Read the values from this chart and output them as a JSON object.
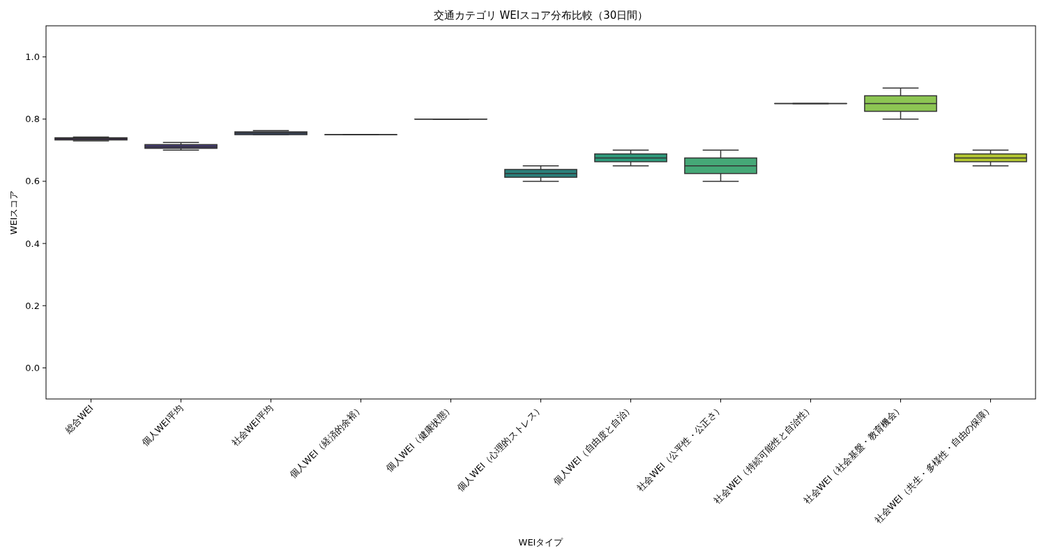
{
  "chart_data": {
    "type": "box",
    "title": "交通カテゴリ WEIスコア分布比較（30日間）",
    "xlabel": "WEIタイプ",
    "ylabel": "WEIスコア",
    "categories": [
      "総合WEI",
      "個人WEI平均",
      "社会WEI平均",
      "個人WEI（経済的余裕）",
      "個人WEI（健康状態）",
      "個人WEI（心理的ストレス）",
      "個人WEI（自由度と自治）",
      "社会WEI（公平性・公正さ）",
      "社会WEI（持続可能性と自治性）",
      "社会WEI（社会基盤・教育機会）",
      "社会WEI（共生・多様性・自由の保障）"
    ],
    "boxes": [
      {
        "low": 0.73,
        "q1": 0.733,
        "median": 0.737,
        "q3": 0.74,
        "high": 0.742
      },
      {
        "low": 0.7,
        "q1": 0.706,
        "median": 0.711,
        "q3": 0.718,
        "high": 0.725
      },
      {
        "low": 0.75,
        "q1": 0.75,
        "median": 0.755,
        "q3": 0.759,
        "high": 0.763
      },
      {
        "low": 0.75,
        "q1": 0.75,
        "median": 0.75,
        "q3": 0.75,
        "high": 0.75
      },
      {
        "low": 0.8,
        "q1": 0.8,
        "median": 0.8,
        "q3": 0.8,
        "high": 0.8
      },
      {
        "low": 0.6,
        "q1": 0.613,
        "median": 0.625,
        "q3": 0.638,
        "high": 0.65
      },
      {
        "low": 0.65,
        "q1": 0.663,
        "median": 0.675,
        "q3": 0.688,
        "high": 0.7
      },
      {
        "low": 0.6,
        "q1": 0.625,
        "median": 0.65,
        "q3": 0.675,
        "high": 0.7
      },
      {
        "low": 0.85,
        "q1": 0.85,
        "median": 0.85,
        "q3": 0.85,
        "high": 0.85
      },
      {
        "low": 0.8,
        "q1": 0.825,
        "median": 0.85,
        "q3": 0.875,
        "high": 0.9
      },
      {
        "low": 0.65,
        "q1": 0.663,
        "median": 0.675,
        "q3": 0.688,
        "high": 0.7
      }
    ],
    "colors": [
      "#3e1f5a",
      "#463c78",
      "#3b527e",
      "#33637f",
      "#2b727f",
      "#2a7f7a",
      "#2e9a7b",
      "#45a877",
      "#6bb667",
      "#8dc653",
      "#b3c632"
    ],
    "ylim": [
      -0.1,
      1.1
    ],
    "yticks": [
      {
        "value": 0,
        "label": "0.0"
      },
      {
        "value": 0.2,
        "label": "0.2"
      },
      {
        "value": 0.4,
        "label": "0.4"
      },
      {
        "value": 0.6,
        "label": "0.6"
      },
      {
        "value": 0.8,
        "label": "0.8"
      },
      {
        "value": 1,
        "label": "1.0"
      }
    ]
  }
}
